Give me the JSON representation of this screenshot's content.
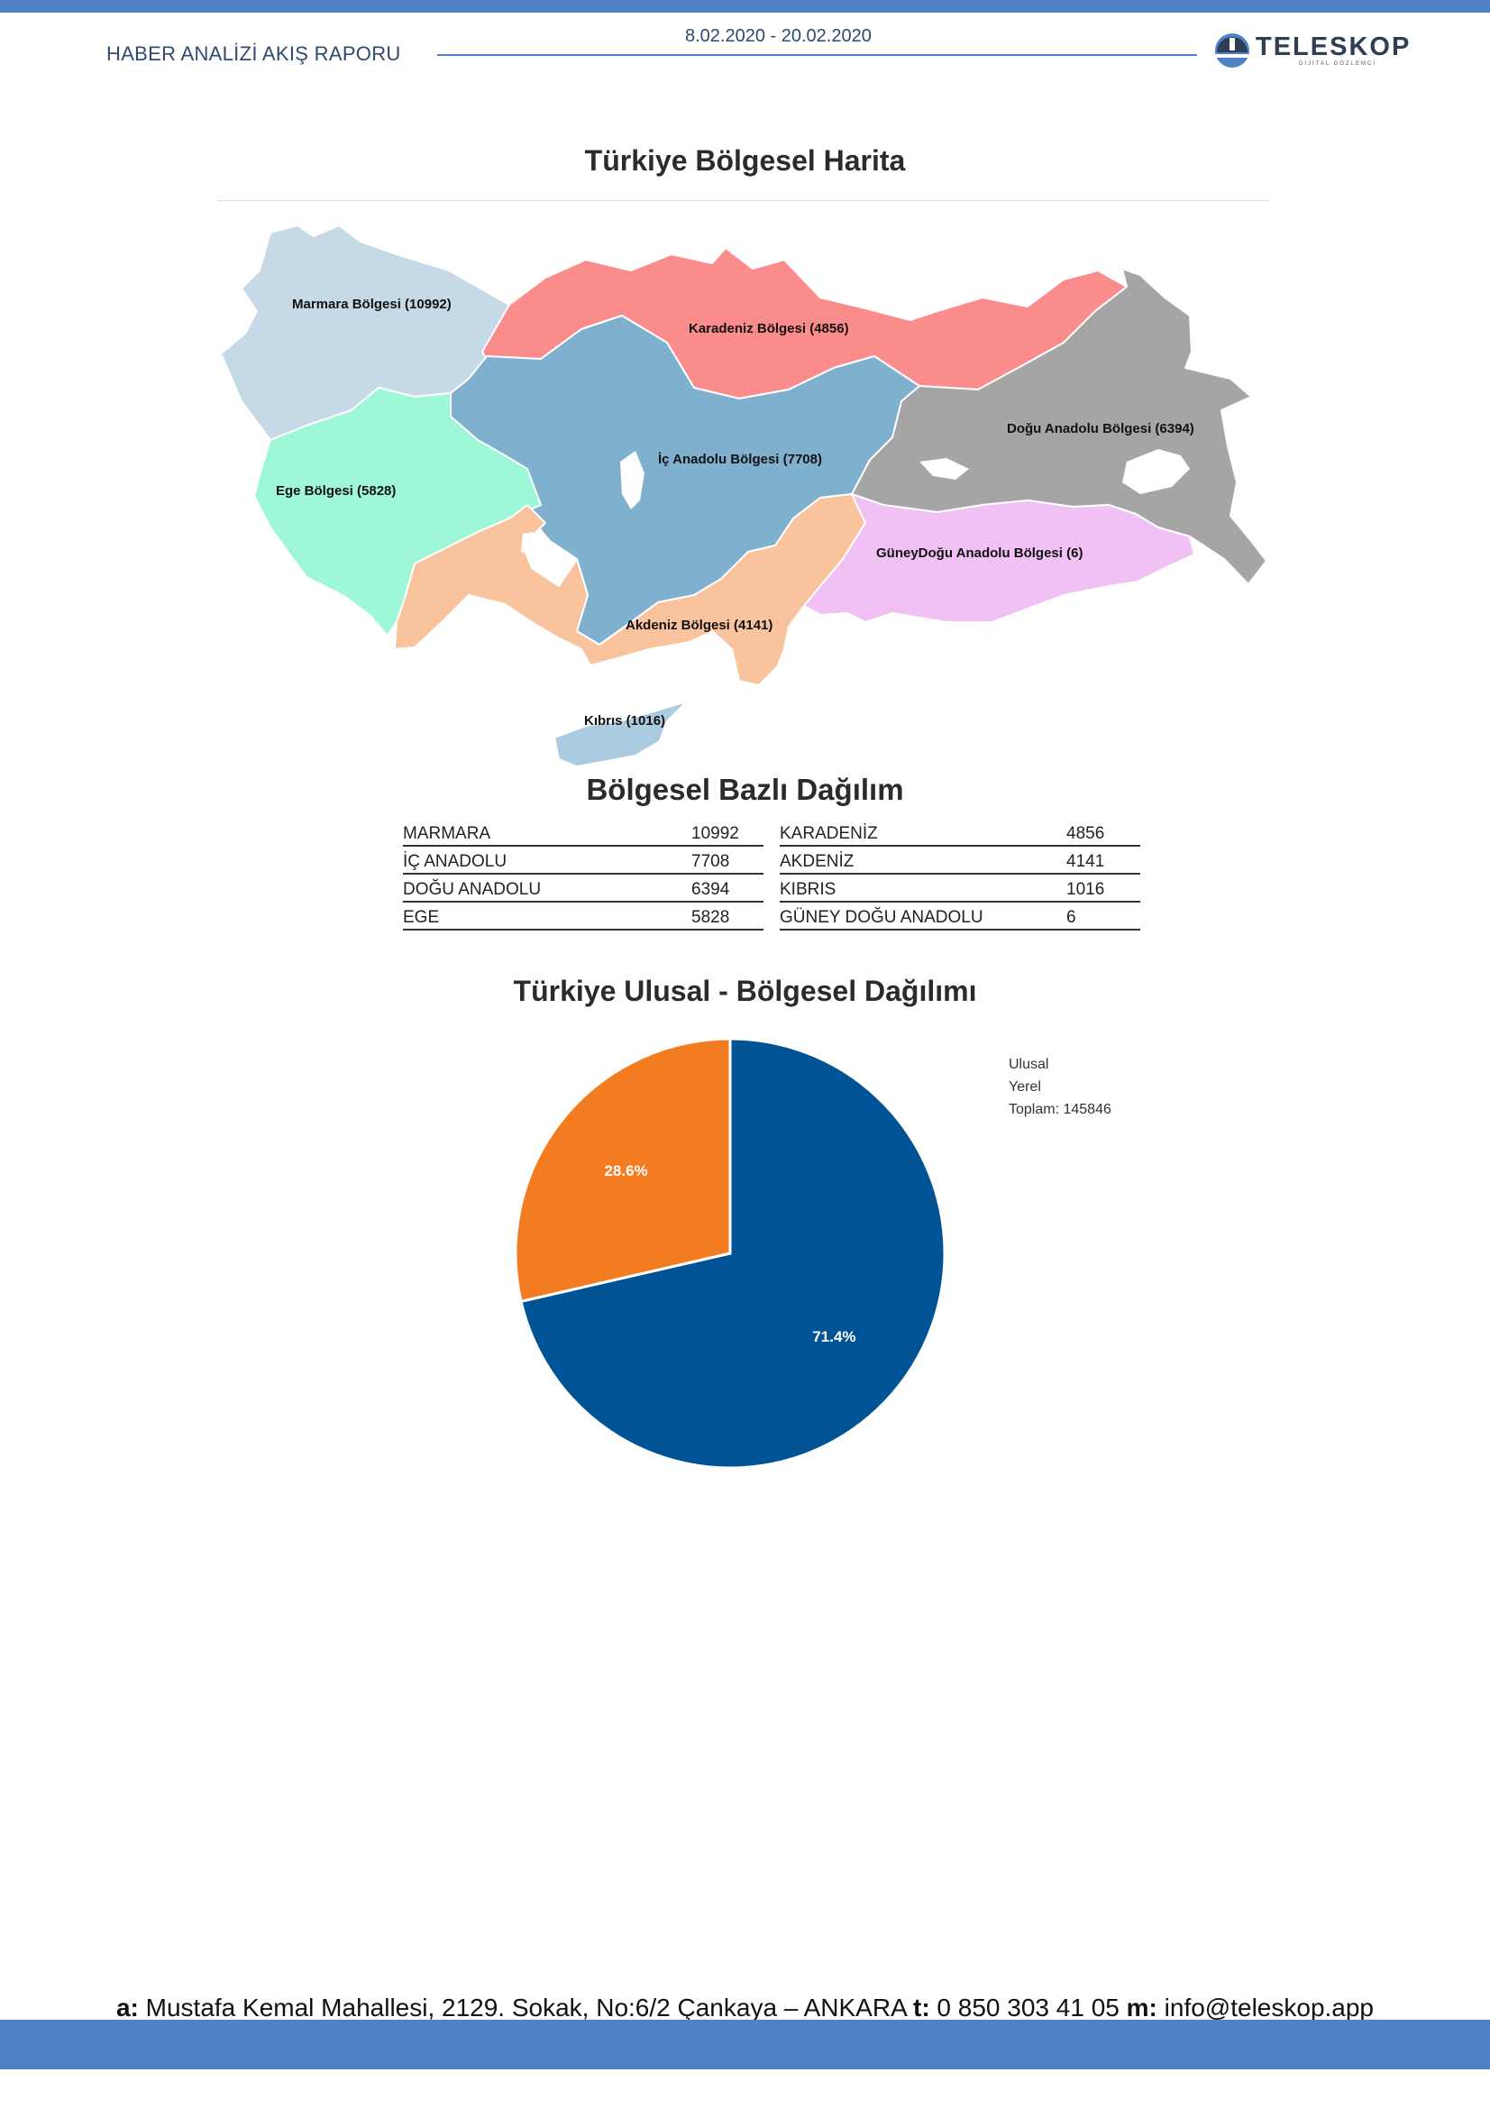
{
  "header": {
    "report_title": "HABER ANALİZİ AKIŞ RAPORU",
    "date_range": "8.02.2020 - 20.02.2020",
    "logo_text": "TELESKOP",
    "logo_subtitle": "DİJİTAL GÖZLEMCİ"
  },
  "map": {
    "title": "Türkiye Bölgesel Harita",
    "regions": [
      {
        "key": "marmara",
        "label": "Marmara Bölgesi (10992)",
        "color": "#c5d9e6"
      },
      {
        "key": "karadeniz",
        "label": "Karadeniz Bölgesi (4856)",
        "color": "#fb8c8c"
      },
      {
        "key": "ege",
        "label": "Ege Bölgesi (5828)",
        "color": "#9ef7d6"
      },
      {
        "key": "icanadolu",
        "label": "İç Anadolu Bölgesi (7708)",
        "color": "#7fb1cf"
      },
      {
        "key": "doguanadolu",
        "label": "Doğu Anadolu Bölgesi (6394)",
        "color": "#a5a5a5"
      },
      {
        "key": "guneydogu",
        "label": "GüneyDoğu Anadolu Bölgesi (6)",
        "color": "#f1c0f5"
      },
      {
        "key": "akdeniz",
        "label": "Akdeniz Bölgesi (4141)",
        "color": "#f9c49d"
      },
      {
        "key": "kibris",
        "label": "Kıbrıs (1016)",
        "color": "#abcbe0"
      }
    ]
  },
  "regional_table": {
    "title": "Bölgesel Bazlı Dağılım",
    "left": [
      {
        "name": "MARMARA",
        "value": "10992"
      },
      {
        "name": "İÇ ANADOLU",
        "value": "7708"
      },
      {
        "name": "DOĞU ANADOLU",
        "value": "6394"
      },
      {
        "name": "EGE",
        "value": "5828"
      }
    ],
    "right": [
      {
        "name": "KARADENİZ",
        "value": "4856"
      },
      {
        "name": "AKDENİZ",
        "value": "4141"
      },
      {
        "name": "KIBRIS",
        "value": "1016"
      },
      {
        "name": "GÜNEY DOĞU ANADOLU",
        "value": "6"
      }
    ]
  },
  "chart_data": {
    "type": "pie",
    "title": "Türkiye Ulusal - Bölgesel Dağılımı",
    "categories": [
      "Ulusal",
      "Yerel"
    ],
    "values": [
      71.4,
      28.6
    ],
    "labels": [
      "71.4%",
      "28.6%"
    ],
    "colors": [
      "#005496",
      "#f47c20"
    ],
    "legend": [
      "Ulusal",
      "Yerel",
      "Toplam: 145846"
    ],
    "legend_position": "top-right",
    "start_angle": "12 o'clock, clockwise"
  },
  "footer": {
    "a_label": "a:",
    "address": " Mustafa Kemal Mahallesi, 2129. Sokak, No:6/2 Çankaya – ANKARA ",
    "t_label": "t:",
    "phone": " 0 850 303 41 05 ",
    "m_label": "m:",
    "email": " info@teleskop.app"
  }
}
